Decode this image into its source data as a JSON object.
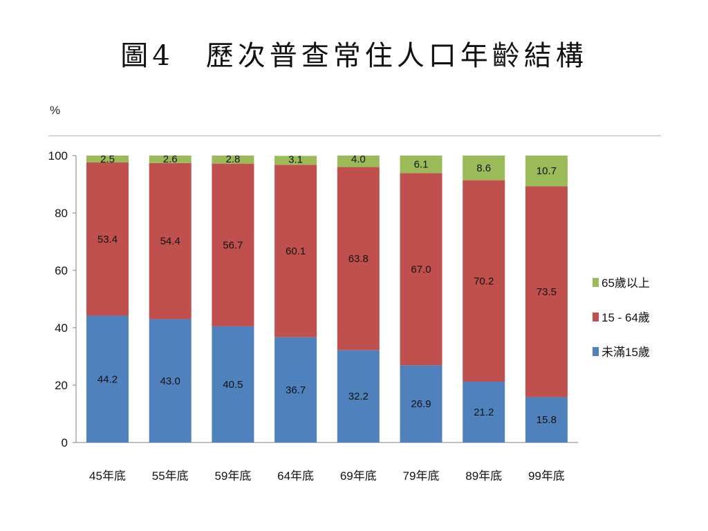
{
  "title": "圖4　歷次普查常住人口年齡結構",
  "chart_data": {
    "type": "bar",
    "stacked": true,
    "ylabel": "%",
    "ylim": [
      0,
      100
    ],
    "yticks": [
      "0",
      "20",
      "40",
      "60",
      "80",
      "100"
    ],
    "categories": [
      "45年底",
      "55年底",
      "59年底",
      "64年底",
      "69年底",
      "79年底",
      "89年底",
      "99年底"
    ],
    "series": [
      {
        "name": "未滿15歲",
        "color": "#4f81bd",
        "values": [
          44.2,
          43.0,
          40.5,
          36.7,
          32.2,
          26.9,
          21.2,
          15.8
        ],
        "labels": [
          "44.2",
          "43.0",
          "40.5",
          "36.7",
          "32.2",
          "26.9",
          "21.2",
          "15.8"
        ]
      },
      {
        "name": "15 - 64歲",
        "color": "#c0504d",
        "values": [
          53.4,
          54.4,
          56.7,
          60.1,
          63.8,
          67.0,
          70.2,
          73.5
        ],
        "labels": [
          "53.4",
          "54.4",
          "56.7",
          "60.1",
          "63.8",
          "67.0",
          "70.2",
          "73.5"
        ]
      },
      {
        "name": "65歲以上",
        "color": "#9bbb59",
        "values": [
          2.5,
          2.6,
          2.8,
          3.1,
          4.0,
          6.1,
          8.6,
          10.7
        ],
        "labels": [
          "2.5",
          "2.6",
          "2.8",
          "3.1",
          "4.0",
          "6.1",
          "8.6",
          "10.7"
        ]
      }
    ],
    "legend_position": "right",
    "grid": false
  }
}
